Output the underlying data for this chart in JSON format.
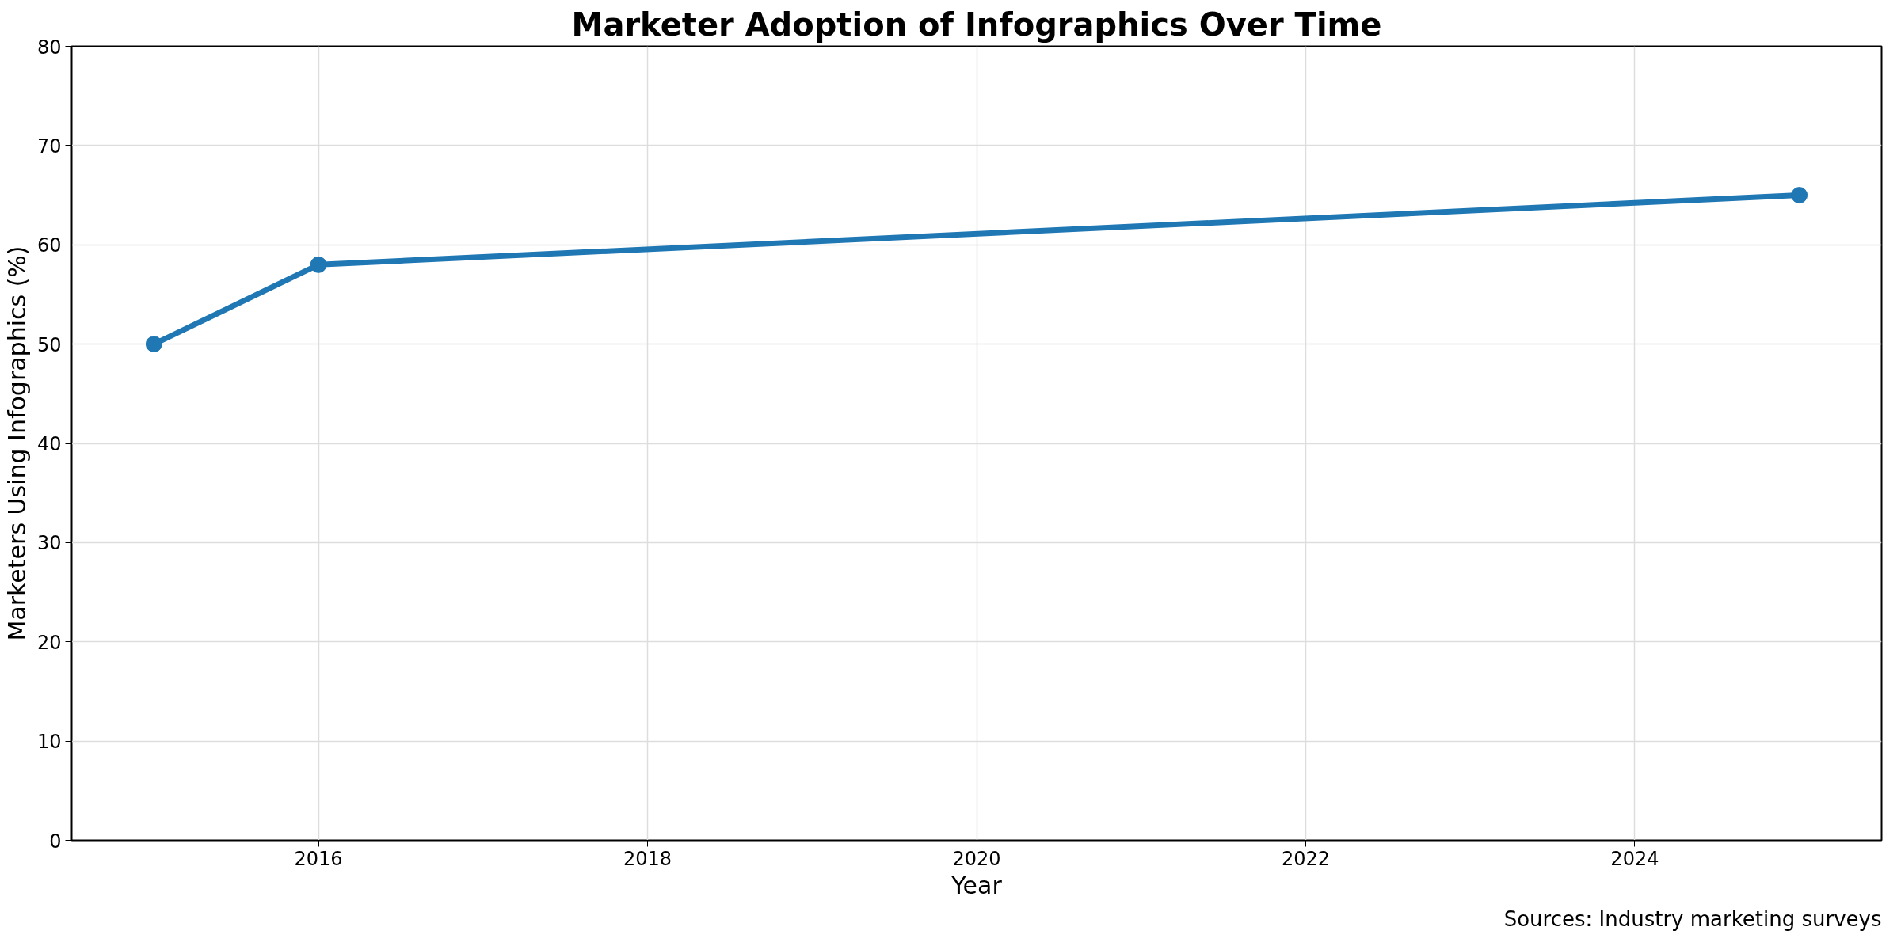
{
  "chart_data": {
    "type": "line",
    "title": "Marketer Adoption of Infographics Over Time",
    "xlabel": "Year",
    "ylabel": "Marketers Using Infographics (%)",
    "x": [
      2015,
      2016,
      2025
    ],
    "series": [
      {
        "color": "#1f77b4",
        "values": [
          50,
          58,
          65
        ]
      }
    ],
    "xlim": [
      2014.5,
      2025.5
    ],
    "xticks": [
      2016,
      2018,
      2020,
      2022,
      2024
    ],
    "ylim": [
      0,
      80
    ],
    "yticks": [
      0,
      10,
      20,
      30,
      40,
      50,
      60,
      70,
      80
    ],
    "grid": true,
    "marker": "circle",
    "line_style": "solid",
    "annotations": [
      "Sources: Industry marketing surveys"
    ]
  }
}
